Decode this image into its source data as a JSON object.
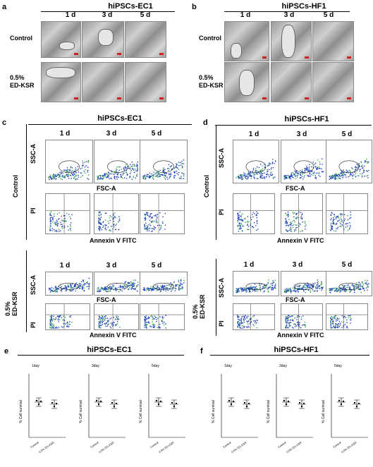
{
  "panels": {
    "a": {
      "label": "a",
      "title": "hiPSCs-EC1",
      "days": [
        "1 d",
        "3 d",
        "5 d"
      ],
      "rows": [
        "Control",
        "0.5%\nED-KSR"
      ]
    },
    "b": {
      "label": "b",
      "title": "hiPSCs-HF1",
      "days": [
        "1 d",
        "3 d",
        "5 d"
      ],
      "rows": [
        "Control",
        "0.5%\nED-KSR"
      ]
    },
    "c": {
      "label": "c",
      "title": "hiPSCs-EC1",
      "days": [
        "1 d",
        "3 d",
        "5 d"
      ],
      "ssc": "SSC-A",
      "fsc": "FSC-A",
      "pi": "PI",
      "annexin": "Annexin V FITC",
      "ctrl": "Control",
      "ed1": "0.5%",
      "ed2": "ED-KSR"
    },
    "d": {
      "label": "d",
      "title": "hiPSCs-HF1",
      "days": [
        "1 d",
        "3 d",
        "5 d"
      ],
      "ssc": "SSC-A",
      "fsc": "FSC-A",
      "pi": "PI",
      "annexin": "Annexin V FITC",
      "ctrl": "Control",
      "ed1": "0.5%",
      "ed2": "ED-KSR"
    },
    "e": {
      "label": "e",
      "title": "hiPSCs-EC1",
      "subs": [
        "1day",
        "3day",
        "5day"
      ],
      "ylabel": "% Cell survival",
      "xcats": [
        "Control",
        "0.5% ED-KSR"
      ]
    },
    "f": {
      "label": "f",
      "title": "hiPSCs-HF1",
      "subs": [
        "1day",
        "3day",
        "5day"
      ],
      "ylabel": "% Cell survival",
      "xcats": [
        "Control",
        "0.5% ED-KSR"
      ]
    }
  },
  "colors": {
    "scale_bar": "#d02020",
    "flow_blue": "#2040c0",
    "flow_green": "#30b040"
  }
}
